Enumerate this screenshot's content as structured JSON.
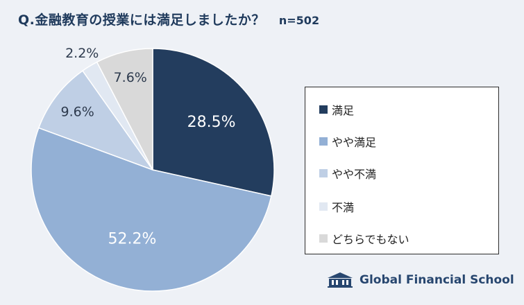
{
  "header": {
    "title": "Q.金融教育の授業には満足しましたか？",
    "sample": "n=502"
  },
  "chart_data": {
    "type": "pie",
    "start": "12 o'clock, clockwise",
    "slices": [
      {
        "label": "満足",
        "value": 28.5,
        "display": "28.5%",
        "color": "#233d5e",
        "text_color": "#ffffff"
      },
      {
        "label": "やや満足",
        "value": 52.2,
        "display": "52.2%",
        "color": "#93b0d5",
        "text_color": "#ffffff"
      },
      {
        "label": "やや不満",
        "value": 9.6,
        "display": "9.6%",
        "color": "#bfcfe5",
        "text_color": "#2d3a4d"
      },
      {
        "label": "不満",
        "value": 2.2,
        "display": "2.2%",
        "color": "#e1e8f2",
        "text_color": "#2d3a4d"
      },
      {
        "label": "どちらでもない",
        "value": 7.6,
        "display": "7.6%",
        "color": "#d9d9d9",
        "text_color": "#2d3a4d"
      }
    ],
    "legend_position": "right"
  },
  "logo": {
    "text": "Global Financial School",
    "icon": "school-building-icon"
  }
}
